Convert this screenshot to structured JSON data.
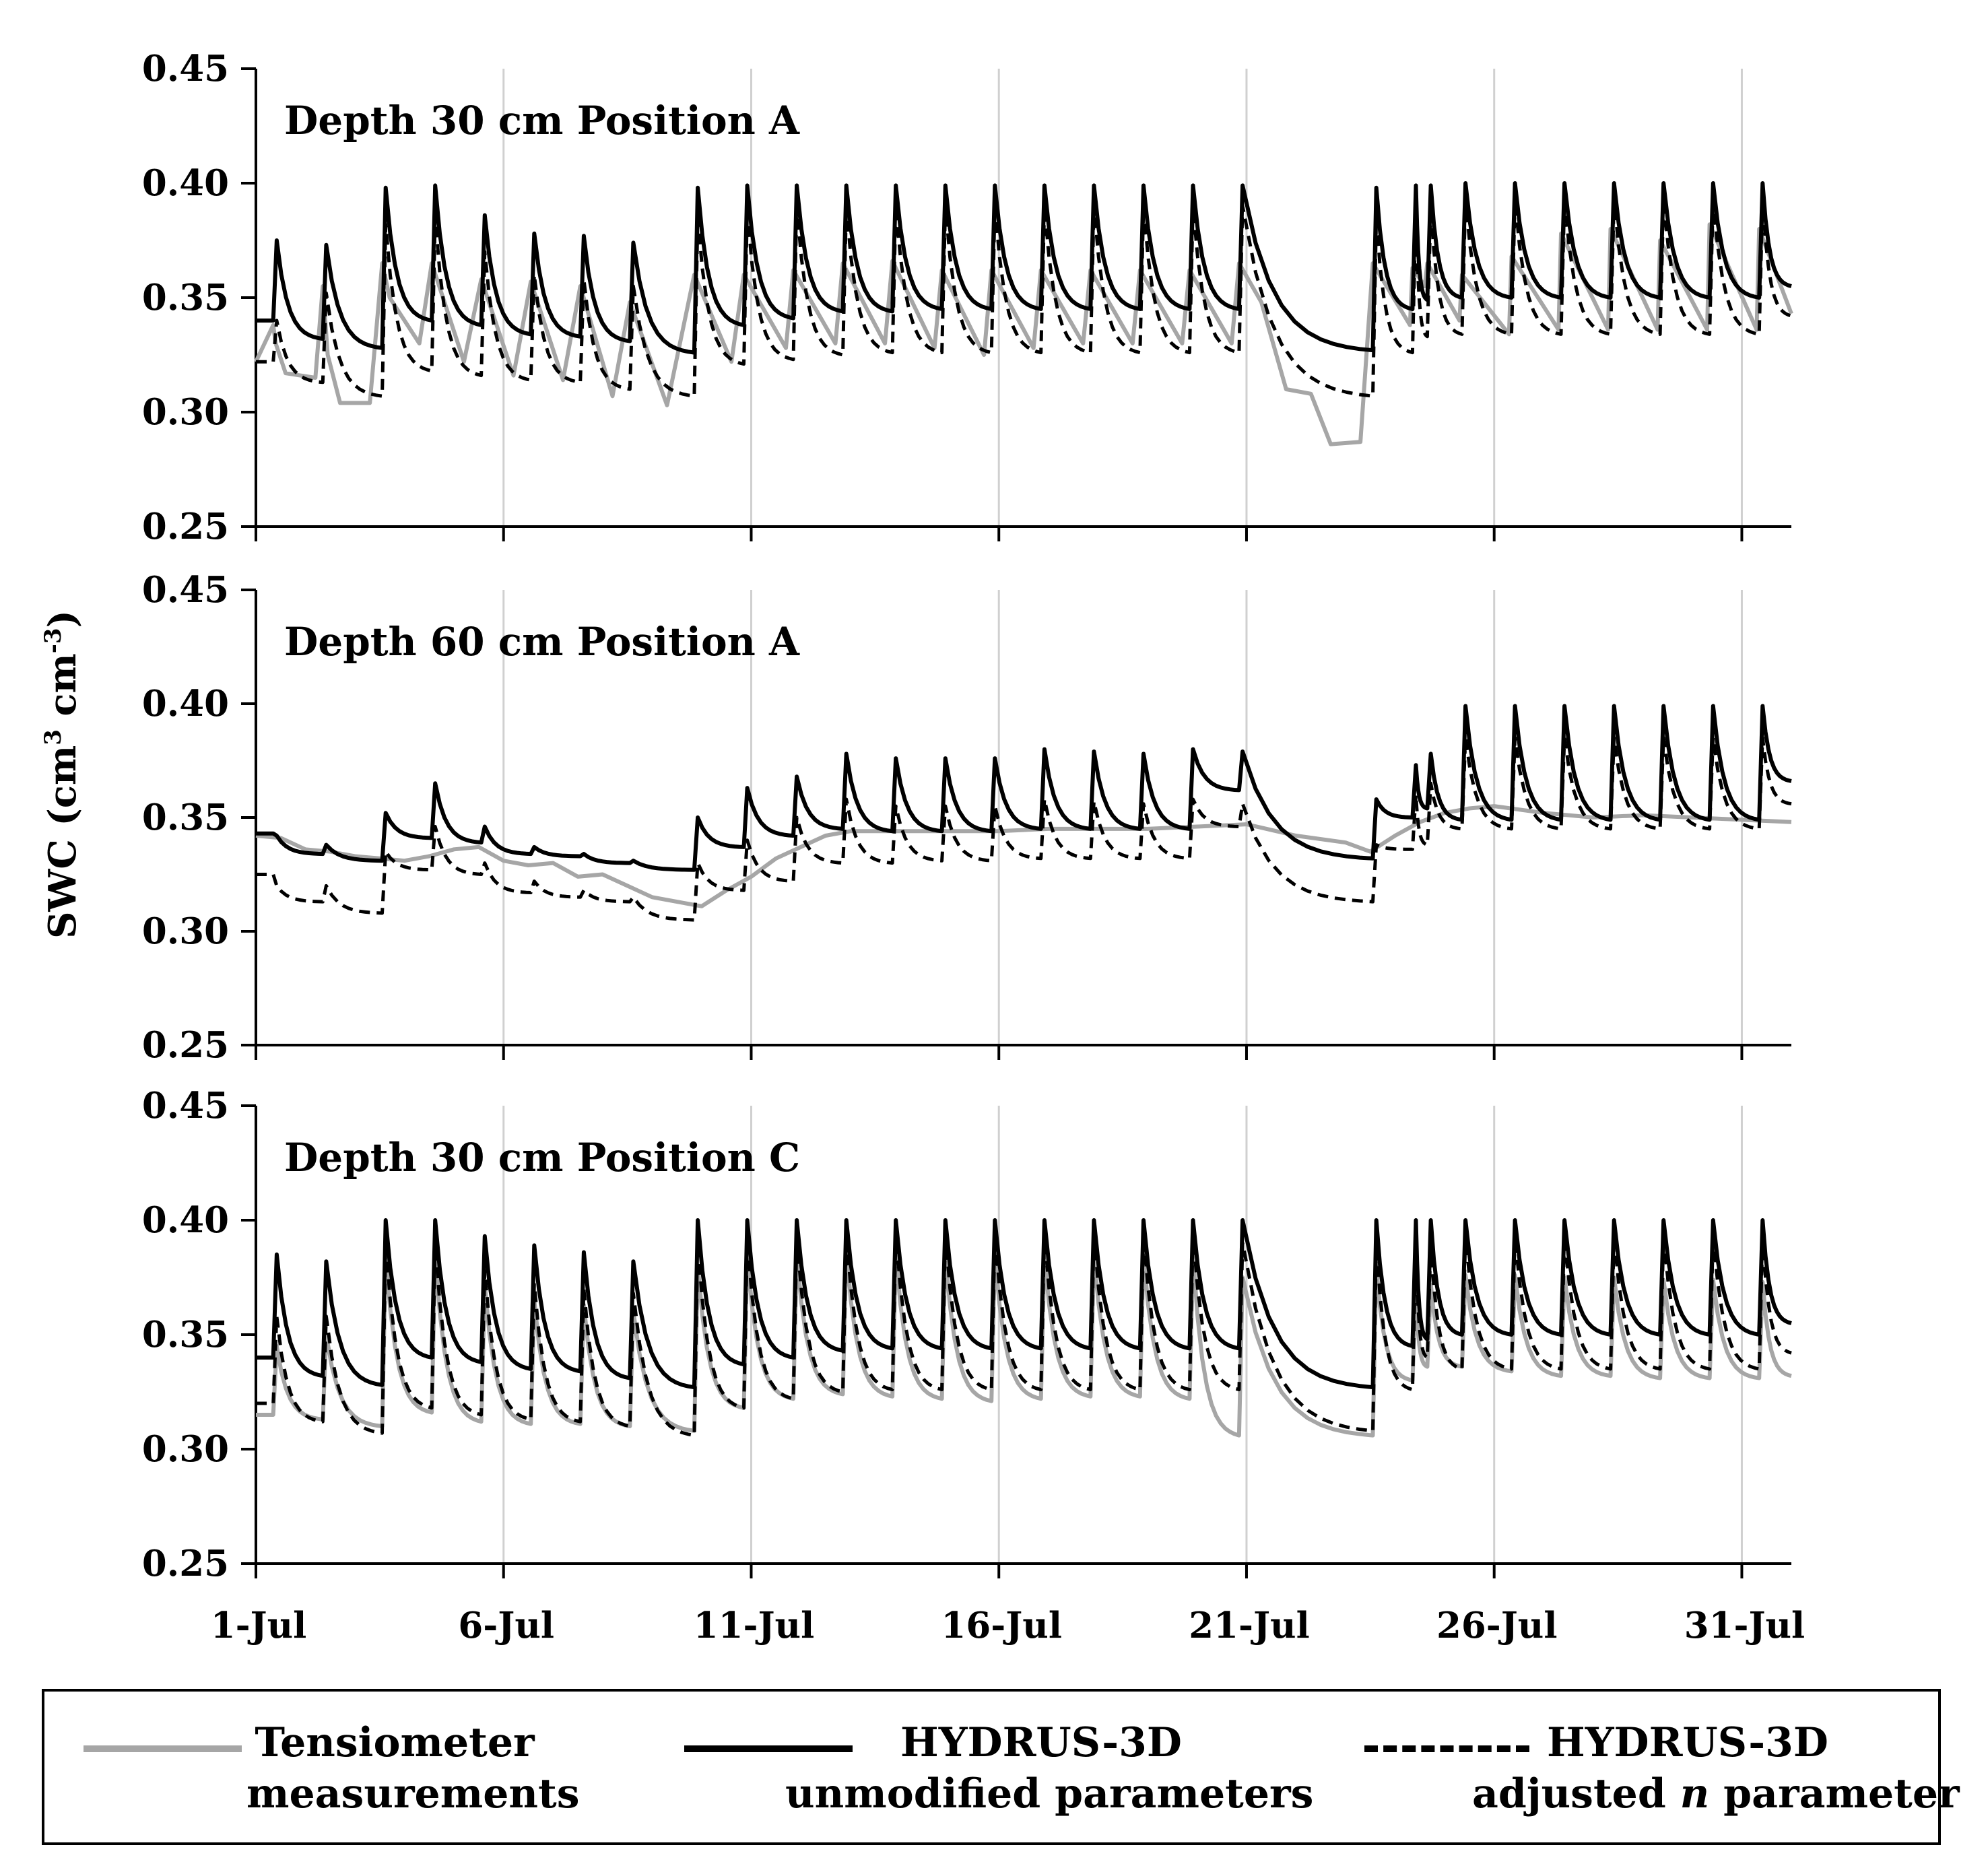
{
  "chart_data": {
    "type": "line",
    "ylabel": "SWC (cm",
    "ylabel_sup1": "3",
    "ylabel_mid": " cm",
    "ylabel_sup2": "-3",
    "ylabel_end": ")",
    "x_tick_labels": [
      "1-Jul",
      "6-Jul",
      "11-Jul",
      "16-Jul",
      "21-Jul",
      "26-Jul",
      "31-Jul"
    ],
    "x_tick_days": [
      1,
      6,
      11,
      16,
      21,
      26,
      31
    ],
    "xlim": [
      1,
      32
    ],
    "y_tick_labels": [
      "0.25",
      "0.30",
      "0.35",
      "0.40",
      "0.45"
    ],
    "y_ticks": [
      0.25,
      0.3,
      0.35,
      0.4,
      0.45
    ],
    "ylim": [
      0.25,
      0.45
    ],
    "vertical_gridlines": true,
    "legend": {
      "position": "bottom",
      "entries": [
        {
          "line1": "Tensiometer",
          "line2": "measurements",
          "style": "solid",
          "color": "#a6a6a6"
        },
        {
          "line1": "HYDRUS-3D",
          "line2": "unmodified parameters",
          "style": "solid",
          "color": "#000000"
        },
        {
          "line1": "HYDRUS-3D",
          "line2_pre": "adjusted ",
          "line2_italic": "n",
          "line2_post": " parameter",
          "style": "dashed",
          "color": "#000000"
        }
      ]
    },
    "panels": [
      {
        "title": "Depth 30 cm Position A",
        "irrigation_days": [
          1.35,
          2.35,
          3.55,
          4.55,
          5.55,
          6.55,
          7.55,
          8.55,
          9.85,
          10.85,
          11.85,
          12.85,
          13.85,
          14.85,
          15.85,
          16.85,
          17.85,
          18.85,
          19.85,
          20.85,
          23.55,
          24.35,
          24.65,
          25.35,
          26.35,
          27.35,
          28.35,
          29.35,
          30.35,
          31.35
        ],
        "series": [
          {
            "name": "Tensiometer measurements",
            "color": "#a6a6a6",
            "style": "solid",
            "x": [
              1,
              1.35,
              1.4,
              1.6,
              2.2,
              2.35,
              2.45,
              2.7,
              3.3,
              3.55,
              3.7,
              4.3,
              4.55,
              5.2,
              5.55,
              6.2,
              6.55,
              7.2,
              7.55,
              8.2,
              8.55,
              9.3,
              9.85,
              10.6,
              10.85,
              11.7,
              11.85,
              12.7,
              12.85,
              13.7,
              13.85,
              14.7,
              14.85,
              15.7,
              15.85,
              16.7,
              16.85,
              17.7,
              17.85,
              18.7,
              18.85,
              19.7,
              19.85,
              20.7,
              20.85,
              21.3,
              21.8,
              22.3,
              22.7,
              23.3,
              23.55,
              24.3,
              24.35,
              24.6,
              24.65,
              25.3,
              25.35,
              26.3,
              26.35,
              27.3,
              27.35,
              28.3,
              28.35,
              29.3,
              29.35,
              30.3,
              30.35,
              31.3,
              31.35,
              32
            ],
            "y": [
              0.322,
              0.338,
              0.33,
              0.317,
              0.315,
              0.355,
              0.325,
              0.304,
              0.304,
              0.365,
              0.35,
              0.33,
              0.365,
              0.322,
              0.358,
              0.316,
              0.357,
              0.314,
              0.355,
              0.307,
              0.348,
              0.303,
              0.36,
              0.322,
              0.36,
              0.328,
              0.362,
              0.33,
              0.365,
              0.33,
              0.366,
              0.328,
              0.362,
              0.325,
              0.362,
              0.328,
              0.362,
              0.33,
              0.362,
              0.33,
              0.362,
              0.33,
              0.362,
              0.33,
              0.365,
              0.348,
              0.31,
              0.308,
              0.286,
              0.287,
              0.365,
              0.338,
              0.363,
              0.355,
              0.365,
              0.34,
              0.36,
              0.334,
              0.368,
              0.336,
              0.378,
              0.336,
              0.38,
              0.336,
              0.375,
              0.336,
              0.382,
              0.336,
              0.38,
              0.343
            ]
          },
          {
            "name": "HYDRUS-3D unmodified parameters",
            "color": "#000000",
            "style": "solid",
            "peaks": [
              0.375,
              0.373,
              0.398,
              0.399,
              0.386,
              0.378,
              0.377,
              0.374,
              0.398,
              0.399,
              0.399,
              0.399,
              0.399,
              0.399,
              0.399,
              0.399,
              0.399,
              0.399,
              0.399,
              0.399,
              0.398,
              0.399,
              0.399,
              0.4,
              0.4,
              0.4,
              0.4,
              0.4,
              0.4,
              0.4
            ],
            "troughs": [
              0.34,
              0.332,
              0.328,
              0.34,
              0.338,
              0.334,
              0.333,
              0.331,
              0.326,
              0.338,
              0.341,
              0.344,
              0.344,
              0.345,
              0.345,
              0.345,
              0.345,
              0.345,
              0.345,
              0.345,
              0.327,
              0.345,
              0.349,
              0.35,
              0.35,
              0.35,
              0.35,
              0.35,
              0.35,
              0.35
            ],
            "end": 0.355
          },
          {
            "name": "HYDRUS-3D adjusted n parameter",
            "color": "#000000",
            "style": "dashed",
            "peaks": [
              0.34,
              0.352,
              0.382,
              0.385,
              0.37,
              0.36,
              0.358,
              0.355,
              0.385,
              0.388,
              0.39,
              0.39,
              0.39,
              0.39,
              0.39,
              0.39,
              0.39,
              0.39,
              0.39,
              0.39,
              0.385,
              0.39,
              0.39,
              0.393,
              0.393,
              0.393,
              0.393,
              0.393,
              0.393,
              0.393
            ],
            "troughs": [
              0.322,
              0.313,
              0.307,
              0.318,
              0.316,
              0.314,
              0.313,
              0.31,
              0.307,
              0.321,
              0.323,
              0.325,
              0.326,
              0.326,
              0.326,
              0.326,
              0.326,
              0.326,
              0.326,
              0.326,
              0.307,
              0.326,
              0.333,
              0.334,
              0.334,
              0.334,
              0.334,
              0.334,
              0.334,
              0.334
            ],
            "end": 0.342
          }
        ]
      },
      {
        "title": "Depth 60 cm Position A",
        "irrigation_days": [
          1.35,
          2.35,
          3.55,
          4.55,
          5.55,
          6.55,
          7.55,
          8.55,
          9.85,
          10.85,
          11.85,
          12.85,
          13.85,
          14.85,
          15.85,
          16.85,
          17.85,
          18.85,
          19.85,
          20.85,
          23.55,
          24.35,
          24.65,
          25.35,
          26.35,
          27.35,
          28.35,
          29.35,
          30.35,
          31.35
        ],
        "series": [
          {
            "name": "Tensiometer measurements",
            "color": "#a6a6a6",
            "style": "solid",
            "x": [
              1,
              1.5,
              2,
              2.5,
              3,
              3.5,
              4,
              4.5,
              5,
              5.5,
              6,
              6.5,
              7,
              7.5,
              8,
              8.5,
              9,
              9.5,
              10,
              10.5,
              11,
              11.5,
              12,
              12.5,
              13,
              14,
              15,
              16,
              17,
              18,
              19,
              20,
              21,
              22,
              23,
              23.5,
              24,
              24.5,
              25,
              25.5,
              26,
              27,
              28,
              29,
              30,
              31,
              32
            ],
            "y": [
              0.342,
              0.341,
              0.336,
              0.335,
              0.333,
              0.332,
              0.331,
              0.333,
              0.336,
              0.337,
              0.331,
              0.329,
              0.33,
              0.324,
              0.325,
              0.32,
              0.315,
              0.313,
              0.311,
              0.318,
              0.324,
              0.332,
              0.337,
              0.342,
              0.344,
              0.344,
              0.344,
              0.344,
              0.345,
              0.345,
              0.345,
              0.346,
              0.347,
              0.342,
              0.339,
              0.335,
              0.342,
              0.348,
              0.352,
              0.354,
              0.355,
              0.352,
              0.35,
              0.351,
              0.35,
              0.349,
              0.348
            ]
          },
          {
            "name": "HYDRUS-3D unmodified parameters",
            "color": "#000000",
            "style": "solid",
            "peaks": [
              0.342,
              0.338,
              0.352,
              0.365,
              0.346,
              0.337,
              0.334,
              0.331,
              0.35,
              0.363,
              0.368,
              0.378,
              0.376,
              0.376,
              0.376,
              0.38,
              0.379,
              0.378,
              0.38,
              0.379,
              0.358,
              0.373,
              0.378,
              0.399,
              0.399,
              0.399,
              0.399,
              0.399,
              0.399,
              0.399
            ],
            "troughs": [
              0.343,
              0.334,
              0.331,
              0.341,
              0.339,
              0.334,
              0.333,
              0.33,
              0.327,
              0.337,
              0.342,
              0.345,
              0.344,
              0.344,
              0.344,
              0.345,
              0.345,
              0.345,
              0.345,
              0.362,
              0.332,
              0.35,
              0.354,
              0.349,
              0.349,
              0.349,
              0.349,
              0.349,
              0.349,
              0.349
            ],
            "end": 0.366
          },
          {
            "name": "HYDRUS-3D adjusted n parameter",
            "color": "#000000",
            "style": "dashed",
            "peaks": [
              0.32,
              0.32,
              0.335,
              0.346,
              0.33,
              0.322,
              0.318,
              0.315,
              0.33,
              0.34,
              0.35,
              0.358,
              0.355,
              0.355,
              0.355,
              0.358,
              0.357,
              0.356,
              0.358,
              0.356,
              0.338,
              0.36,
              0.365,
              0.385,
              0.385,
              0.385,
              0.385,
              0.385,
              0.385,
              0.385
            ],
            "troughs": [
              0.325,
              0.313,
              0.308,
              0.327,
              0.325,
              0.317,
              0.315,
              0.313,
              0.305,
              0.318,
              0.322,
              0.33,
              0.33,
              0.331,
              0.331,
              0.332,
              0.332,
              0.332,
              0.332,
              0.346,
              0.313,
              0.336,
              0.338,
              0.345,
              0.345,
              0.345,
              0.345,
              0.345,
              0.345,
              0.345
            ],
            "end": 0.356
          }
        ]
      },
      {
        "title": "Depth 30 cm Position C",
        "irrigation_days": [
          1.35,
          2.35,
          3.55,
          4.55,
          5.55,
          6.55,
          7.55,
          8.55,
          9.85,
          10.85,
          11.85,
          12.85,
          13.85,
          14.85,
          15.85,
          16.85,
          17.85,
          18.85,
          19.85,
          20.85,
          23.55,
          24.35,
          24.65,
          25.35,
          26.35,
          27.35,
          28.35,
          29.35,
          30.35,
          31.35
        ],
        "series": [
          {
            "name": "Tensiometer measurements",
            "color": "#a6a6a6",
            "style": "solid",
            "peaks": [
              0.345,
              0.35,
              0.385,
              0.385,
              0.372,
              0.365,
              0.363,
              0.36,
              0.38,
              0.385,
              0.385,
              0.387,
              0.385,
              0.385,
              0.385,
              0.385,
              0.385,
              0.385,
              0.385,
              0.375,
              0.38,
              0.37,
              0.372,
              0.376,
              0.376,
              0.375,
              0.375,
              0.374,
              0.374,
              0.373
            ],
            "troughs": [
              0.315,
              0.313,
              0.31,
              0.316,
              0.312,
              0.311,
              0.311,
              0.31,
              0.308,
              0.318,
              0.322,
              0.324,
              0.323,
              0.322,
              0.321,
              0.322,
              0.323,
              0.323,
              0.322,
              0.306,
              0.306,
              0.33,
              0.336,
              0.336,
              0.334,
              0.332,
              0.332,
              0.331,
              0.331,
              0.331
            ],
            "end": 0.332
          },
          {
            "name": "HYDRUS-3D unmodified parameters",
            "color": "#000000",
            "style": "solid",
            "peaks": [
              0.385,
              0.382,
              0.4,
              0.4,
              0.393,
              0.389,
              0.386,
              0.382,
              0.4,
              0.4,
              0.4,
              0.4,
              0.4,
              0.4,
              0.4,
              0.4,
              0.4,
              0.4,
              0.4,
              0.4,
              0.4,
              0.4,
              0.4,
              0.4,
              0.4,
              0.4,
              0.4,
              0.4,
              0.4,
              0.4
            ],
            "troughs": [
              0.34,
              0.332,
              0.328,
              0.34,
              0.338,
              0.335,
              0.334,
              0.331,
              0.327,
              0.337,
              0.34,
              0.343,
              0.344,
              0.344,
              0.344,
              0.344,
              0.344,
              0.344,
              0.344,
              0.344,
              0.327,
              0.345,
              0.348,
              0.35,
              0.35,
              0.35,
              0.35,
              0.35,
              0.35,
              0.35
            ],
            "end": 0.355
          },
          {
            "name": "HYDRUS-3D adjusted n parameter",
            "color": "#000000",
            "style": "dashed",
            "peaks": [
              0.358,
              0.358,
              0.39,
              0.39,
              0.378,
              0.372,
              0.37,
              0.368,
              0.39,
              0.392,
              0.393,
              0.394,
              0.394,
              0.394,
              0.394,
              0.394,
              0.394,
              0.394,
              0.394,
              0.39,
              0.39,
              0.39,
              0.39,
              0.393,
              0.393,
              0.393,
              0.393,
              0.393,
              0.393,
              0.393
            ],
            "troughs": [
              0.32,
              0.312,
              0.307,
              0.318,
              0.315,
              0.313,
              0.312,
              0.31,
              0.306,
              0.318,
              0.322,
              0.325,
              0.326,
              0.326,
              0.326,
              0.326,
              0.326,
              0.326,
              0.326,
              0.326,
              0.308,
              0.326,
              0.34,
              0.335,
              0.335,
              0.335,
              0.335,
              0.335,
              0.335,
              0.335
            ],
            "end": 0.342
          }
        ]
      }
    ]
  }
}
